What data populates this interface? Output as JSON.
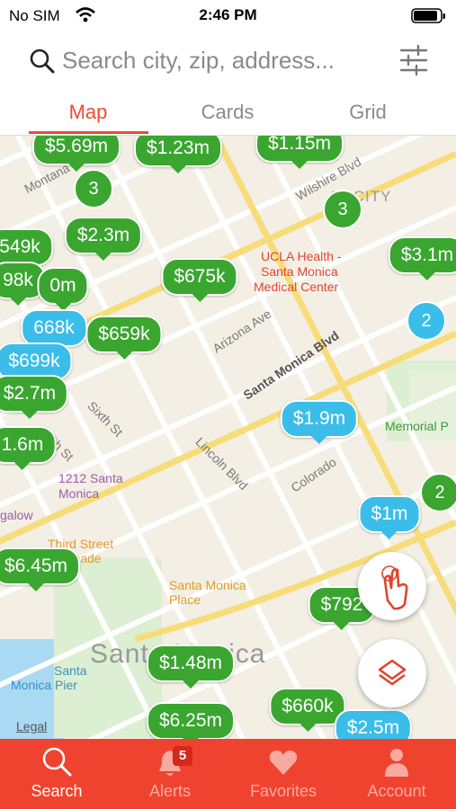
{
  "status_bar": {
    "carrier": "No SIM",
    "time": "2:46 PM"
  },
  "search": {
    "placeholder": "Search city, zip, address..."
  },
  "tabs": [
    "Map",
    "Cards",
    "Grid"
  ],
  "map": {
    "labels": [
      "Montana",
      "Wilshire Blvd",
      "ID CITY",
      "UCLA Health -",
      "Santa Monica",
      "Medical Center",
      "Arizona Ave",
      "Santa Monica Blvd",
      "Lincoln Blvd",
      "Colorado",
      "Sixth St",
      "Fifth St",
      "1212 Santa",
      "Monica",
      "galow",
      "Third Street",
      "menade",
      "Santa Monica",
      "Place",
      "Santa Monica",
      "Santa",
      "Monica Pier",
      "Memorial P",
      "Legal"
    ],
    "pins": [
      {
        "label": "$5.69m",
        "color": "#3aa630"
      },
      {
        "label": "$1.23m",
        "color": "#3aa630"
      },
      {
        "label": "$1.15m",
        "color": "#3aa630"
      },
      {
        "label": "$2.3m",
        "color": "#3aa630"
      },
      {
        "label": "549k",
        "color": "#3aa630"
      },
      {
        "label": "98k",
        "color": "#3aa630"
      },
      {
        "label": "0m",
        "color": "#3aa630"
      },
      {
        "label": "$675k",
        "color": "#3aa630"
      },
      {
        "label": "$3.1m",
        "color": "#3aa630"
      },
      {
        "label": "668k",
        "color": "#3bbde9"
      },
      {
        "label": "$659k",
        "color": "#3aa630"
      },
      {
        "label": "$699k",
        "color": "#3bbde9"
      },
      {
        "label": "$2.7m",
        "color": "#3aa630"
      },
      {
        "label": "$1.9m",
        "color": "#3bbde9"
      },
      {
        "label": "1.6m",
        "color": "#3aa630"
      },
      {
        "label": "$1m",
        "color": "#3bbde9"
      },
      {
        "label": "$6.45m",
        "color": "#3aa630"
      },
      {
        "label": "$792",
        "color": "#3aa630"
      },
      {
        "label": "$1.48m",
        "color": "#3aa630"
      },
      {
        "label": "$6.25m",
        "color": "#3aa630"
      },
      {
        "label": "$660k",
        "color": "#3aa630"
      },
      {
        "label": "$2.5m",
        "color": "#3bbde9"
      }
    ],
    "clusters": [
      {
        "label": "3",
        "color": "#3aa630"
      },
      {
        "label": "3",
        "color": "#3aa630"
      },
      {
        "label": "2",
        "color": "#3bbde9"
      },
      {
        "label": "2",
        "color": "#3aa630"
      }
    ]
  },
  "bottom_nav": [
    {
      "label": "Search"
    },
    {
      "label": "Alerts",
      "badge": "5"
    },
    {
      "label": "Favorites"
    },
    {
      "label": "Account"
    }
  ]
}
